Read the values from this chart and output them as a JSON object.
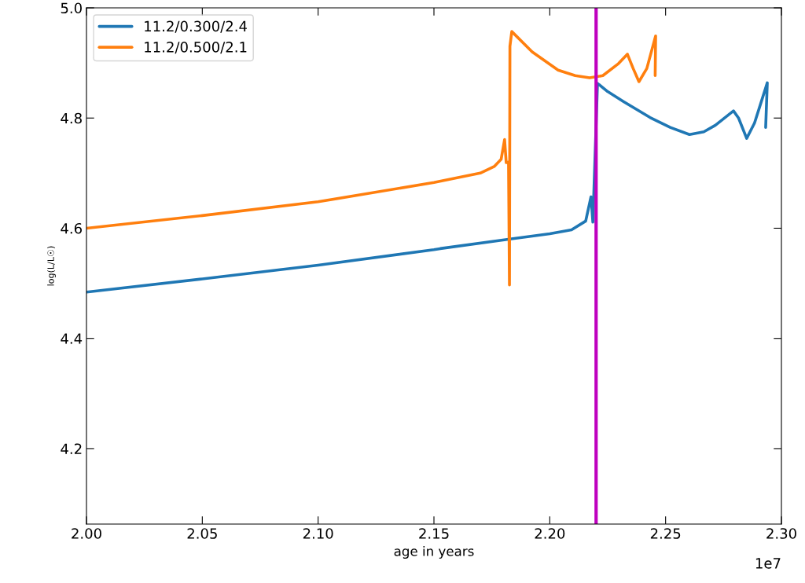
{
  "chart_data": {
    "type": "line",
    "xlabel": "age in years",
    "ylabel": "log(L/L☉)",
    "legend": "top left",
    "grid": false,
    "marker": "none",
    "line_style": "solid",
    "xlim": [
      2.0,
      2.3
    ],
    "xticks": [
      {
        "value": 2.0,
        "label": "2.00"
      },
      {
        "value": 2.05,
        "label": "2.05"
      },
      {
        "value": 2.1,
        "label": "2.10"
      },
      {
        "value": 2.15,
        "label": "2.15"
      },
      {
        "value": 2.2,
        "label": "2.20"
      },
      {
        "value": 2.25,
        "label": "2.25"
      },
      {
        "value": 2.3,
        "label": "2.30"
      }
    ],
    "ylim": [
      4.063,
      5.0
    ],
    "yticks": [
      4.2,
      4.4,
      4.6,
      4.8,
      {
        "value": 5.0,
        "label": "5.0"
      }
    ],
    "annotations": [
      "1e7"
    ],
    "ref_lines": [
      {
        "axis": "x",
        "value": 2.22,
        "label": null,
        "color": "#bf00bf",
        "line_style": "solid"
      }
    ],
    "series": [
      {
        "name": "11.2/0.300/2.4",
        "color": "#1f77b4",
        "x": [
          2.0,
          2.05,
          2.1,
          2.15,
          2.1527,
          2.1822,
          2.2,
          2.2094,
          2.2155,
          2.2178,
          2.2186,
          2.2206,
          2.225,
          2.2318,
          2.2433,
          2.252,
          2.2603,
          2.2665,
          2.2715,
          2.2793,
          2.2815,
          2.285,
          2.2884,
          2.2939,
          2.2932
        ],
        "values": [
          4.484,
          4.508,
          4.533,
          4.561,
          4.563,
          4.58,
          4.59,
          4.597,
          4.613,
          4.657,
          4.611,
          4.863,
          4.848,
          4.83,
          4.801,
          4.783,
          4.77,
          4.775,
          4.787,
          4.813,
          4.8,
          4.763,
          4.791,
          4.864,
          4.783
        ]
      },
      {
        "name": "11.2/0.500/2.1",
        "color": "#ff7f0e",
        "x": [
          2.0,
          2.05,
          2.1,
          2.15,
          2.17,
          2.176,
          2.179,
          2.1805,
          2.1812,
          2.1822,
          2.1826,
          2.1828,
          2.1836,
          2.1924,
          2.2036,
          2.211,
          2.2172,
          2.2229,
          2.2297,
          2.2335,
          2.236,
          2.2385,
          2.2419,
          2.2457,
          2.2455
        ],
        "values": [
          4.6,
          4.623,
          4.648,
          4.683,
          4.7,
          4.712,
          4.725,
          4.761,
          4.719,
          4.72,
          4.497,
          4.93,
          4.957,
          4.92,
          4.887,
          4.877,
          4.873,
          4.877,
          4.899,
          4.916,
          4.89,
          4.866,
          4.89,
          4.949,
          4.877
        ]
      }
    ]
  }
}
